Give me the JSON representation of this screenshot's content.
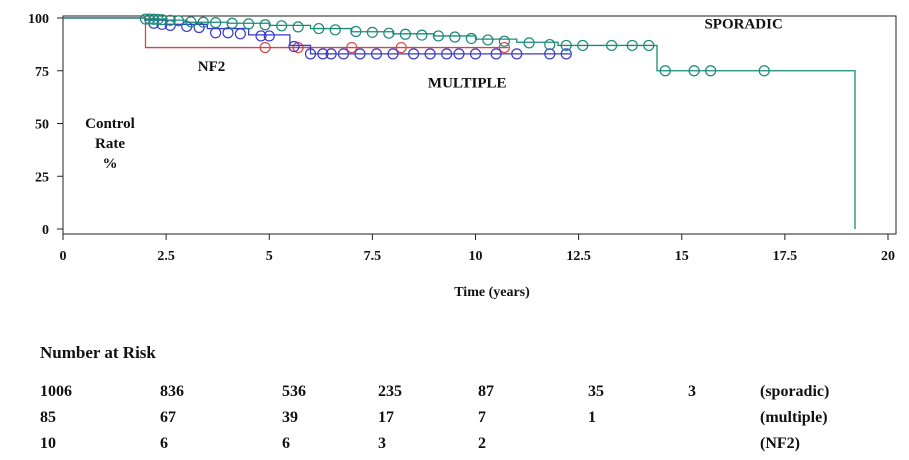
{
  "chart_data": {
    "type": "line",
    "subtype": "kaplan-meier",
    "title": "",
    "xlabel": "Time (years)",
    "ylabel": "Control Rate %",
    "ylabel_lines": [
      "Control",
      "Rate",
      "%"
    ],
    "xlim": [
      0,
      20
    ],
    "ylim": [
      0,
      100
    ],
    "xticks": [
      0,
      2.5,
      5,
      7.5,
      10,
      12.5,
      15,
      17.5,
      20
    ],
    "xtick_labels": [
      "0",
      "2.5",
      "5",
      "7.5",
      "10",
      "12.5",
      "15",
      "17.5",
      "20"
    ],
    "yticks": [
      0,
      25,
      50,
      75,
      100
    ],
    "ytick_labels": [
      "0",
      "25",
      "50",
      "75",
      "100"
    ],
    "grid": false,
    "legend": "none",
    "series": [
      {
        "name": "SPORADIC",
        "color": "#1a8a78",
        "steps": [
          [
            0,
            100
          ],
          [
            2.0,
            99.5
          ],
          [
            2.5,
            99
          ],
          [
            3.0,
            98
          ],
          [
            4.0,
            97.5
          ],
          [
            5.0,
            96.5
          ],
          [
            6.0,
            95
          ],
          [
            7.0,
            93.5
          ],
          [
            8.0,
            92.5
          ],
          [
            9.0,
            91.5
          ],
          [
            10.0,
            90
          ],
          [
            11.0,
            88.5
          ],
          [
            12.0,
            87
          ],
          [
            13.0,
            87
          ],
          [
            14.4,
            87
          ],
          [
            14.4,
            75
          ],
          [
            19.2,
            75
          ],
          [
            19.2,
            0
          ]
        ],
        "censored": [
          [
            2.0,
            99.5
          ],
          [
            2.1,
            99.5
          ],
          [
            2.2,
            99.4
          ],
          [
            2.3,
            99.3
          ],
          [
            2.4,
            99.2
          ],
          [
            2.6,
            98.9
          ],
          [
            2.8,
            98.7
          ],
          [
            3.1,
            98.2
          ],
          [
            3.4,
            98
          ],
          [
            3.7,
            97.8
          ],
          [
            4.1,
            97.5
          ],
          [
            4.5,
            97.2
          ],
          [
            4.9,
            96.8
          ],
          [
            5.3,
            96.3
          ],
          [
            5.7,
            95.8
          ],
          [
            6.2,
            95
          ],
          [
            6.6,
            94.4
          ],
          [
            7.1,
            93.6
          ],
          [
            7.5,
            93.2
          ],
          [
            7.9,
            92.8
          ],
          [
            8.3,
            92.3
          ],
          [
            8.7,
            91.9
          ],
          [
            9.1,
            91.5
          ],
          [
            9.5,
            91
          ],
          [
            9.9,
            90.3
          ],
          [
            10.3,
            89.6
          ],
          [
            10.7,
            89
          ],
          [
            11.3,
            88.2
          ],
          [
            11.8,
            87.4
          ],
          [
            12.2,
            87
          ],
          [
            12.6,
            87
          ],
          [
            13.3,
            87
          ],
          [
            13.8,
            87
          ],
          [
            14.2,
            87
          ],
          [
            14.6,
            75
          ],
          [
            15.3,
            75
          ],
          [
            15.7,
            75
          ],
          [
            17.0,
            75
          ]
        ],
        "label": "SPORADIC",
        "label_pos": [
          16.5,
          95
        ]
      },
      {
        "name": "MULTIPLE",
        "color": "#3a3acc",
        "steps": [
          [
            0,
            100
          ],
          [
            2.0,
            99
          ],
          [
            2.5,
            97
          ],
          [
            3.5,
            95
          ],
          [
            4.5,
            92
          ],
          [
            5.5,
            87
          ],
          [
            6.0,
            83
          ],
          [
            12.3,
            83
          ]
        ],
        "censored": [
          [
            2.2,
            97.5
          ],
          [
            2.4,
            97
          ],
          [
            2.6,
            96.5
          ],
          [
            3.0,
            96
          ],
          [
            3.3,
            95.5
          ],
          [
            3.7,
            93
          ],
          [
            4.0,
            93
          ],
          [
            4.3,
            92.5
          ],
          [
            4.8,
            91.5
          ],
          [
            5.0,
            91.5
          ],
          [
            5.6,
            86.5
          ],
          [
            6.0,
            83
          ],
          [
            6.3,
            83
          ],
          [
            6.5,
            83
          ],
          [
            6.8,
            83
          ],
          [
            7.2,
            83
          ],
          [
            7.6,
            83
          ],
          [
            8.0,
            83
          ],
          [
            8.5,
            83
          ],
          [
            8.9,
            83
          ],
          [
            9.3,
            83
          ],
          [
            9.6,
            83
          ],
          [
            10.0,
            83
          ],
          [
            10.5,
            83
          ],
          [
            11.0,
            83
          ],
          [
            11.8,
            83
          ],
          [
            12.2,
            83
          ]
        ],
        "label": "MULTIPLE",
        "label_pos": [
          9.8,
          67
        ]
      },
      {
        "name": "NF2",
        "color": "#d84545",
        "steps": [
          [
            0,
            100
          ],
          [
            2.0,
            100
          ],
          [
            2.0,
            86
          ],
          [
            10.8,
            86
          ]
        ],
        "censored": [
          [
            4.9,
            86
          ],
          [
            5.7,
            86
          ],
          [
            7.0,
            86
          ],
          [
            8.2,
            86
          ],
          [
            10.7,
            86
          ]
        ],
        "label": "NF2",
        "label_pos": [
          3.6,
          75
        ]
      }
    ],
    "number_at_risk": {
      "title": "Number at Risk",
      "rows": [
        {
          "label": "(sporadic)",
          "values": [
            "1006",
            "836",
            "536",
            "235",
            "87",
            "35",
            "3"
          ]
        },
        {
          "label": "(multiple)",
          "values": [
            "85",
            "67",
            "39",
            "17",
            "7",
            "1",
            ""
          ]
        },
        {
          "label": "(NF2)",
          "values": [
            "10",
            "6",
            "6",
            "3",
            "2",
            "",
            ""
          ]
        }
      ]
    }
  }
}
